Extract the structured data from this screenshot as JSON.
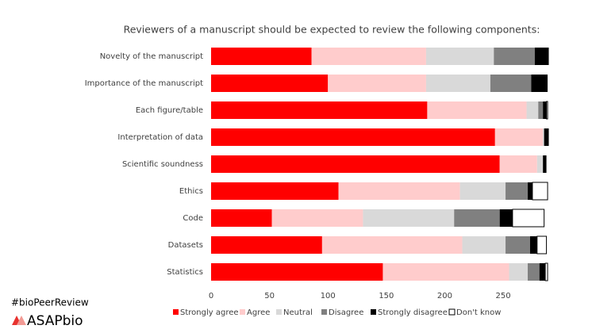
{
  "chart_data": {
    "type": "stacked-barh",
    "title": "Reviewers of a manuscript should be expected to review the following components:",
    "categories": [
      "Novelty of the manuscript",
      "Importance of the manuscript",
      "Each figure/table",
      "Interpretation of data",
      "Scientific soundness",
      "Ethics",
      "Code",
      "Datasets",
      "Statistics"
    ],
    "series": [
      {
        "name": "Strongly agree",
        "color": "#ff0000",
        "values": [
          86,
          100,
          185,
          243,
          247,
          109,
          52,
          95,
          147
        ]
      },
      {
        "name": "Agree",
        "color": "#ffcccc",
        "values": [
          98,
          84,
          85,
          41,
          32,
          104,
          78,
          120,
          108
        ]
      },
      {
        "name": "Neutral",
        "color": "#d9d9d9",
        "values": [
          58,
          55,
          10,
          1,
          5,
          39,
          78,
          37,
          16
        ]
      },
      {
        "name": "Disagree",
        "color": "#808080",
        "values": [
          35,
          35,
          4,
          0,
          0,
          19,
          39,
          21,
          10
        ]
      },
      {
        "name": "Strongly disagree",
        "color": "#000000",
        "values": [
          12,
          14,
          3,
          4,
          3,
          4,
          11,
          6,
          5
        ]
      },
      {
        "name": "Don't know",
        "color": "#ffffff",
        "values": [
          0,
          0,
          1,
          0,
          0,
          13,
          27,
          8,
          2
        ]
      }
    ],
    "xlim": [
      0,
      290
    ],
    "xticks": [
      0,
      50,
      100,
      150,
      200,
      250
    ],
    "legend": "bottom"
  },
  "branding": {
    "hashtag": "#bioPeerReview",
    "logo": "ASAPbio"
  }
}
